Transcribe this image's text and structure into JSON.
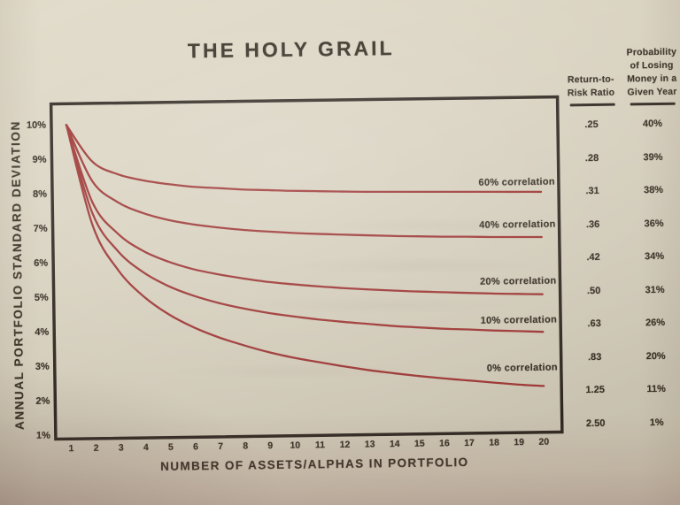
{
  "chart_data": {
    "type": "line",
    "title": "THE HOLY GRAIL",
    "xlabel": "NUMBER OF ASSETS/ALPHAS IN PORTFOLIO",
    "ylabel": "ANNUAL PORTFOLIO STANDARD DEVIATION",
    "x": [
      1,
      2,
      3,
      4,
      5,
      6,
      7,
      8,
      9,
      10,
      11,
      12,
      13,
      14,
      15,
      16,
      17,
      18,
      19,
      20
    ],
    "x_tick_labels": [
      "1",
      "2",
      "3",
      "4",
      "5",
      "6",
      "7",
      "8",
      "9",
      "10",
      "11",
      "12",
      "13",
      "14",
      "15",
      "16",
      "17",
      "18",
      "19",
      "20"
    ],
    "y_tick_labels": [
      "10%",
      "9%",
      "8%",
      "7%",
      "6%",
      "5%",
      "4%",
      "3%",
      "2%",
      "1%"
    ],
    "ylim": [
      1,
      10
    ],
    "y_unit": "percent",
    "grid": false,
    "legend_position": "labels-inline-right",
    "line_color": "#9c3533",
    "frame_color": "#2e2720",
    "series": [
      {
        "name": "60% correlation",
        "correlation_pct": 60,
        "values": [
          10.0,
          8.94,
          8.56,
          8.37,
          8.25,
          8.16,
          8.11,
          8.06,
          8.03,
          8.0,
          7.98,
          7.96,
          7.94,
          7.93,
          7.92,
          7.91,
          7.9,
          7.89,
          7.88,
          7.87
        ]
      },
      {
        "name": "40% correlation",
        "correlation_pct": 40,
        "values": [
          10.0,
          8.37,
          7.75,
          7.42,
          7.21,
          7.07,
          6.97,
          6.89,
          6.83,
          6.78,
          6.74,
          6.71,
          6.68,
          6.65,
          6.63,
          6.61,
          6.6,
          6.58,
          6.57,
          6.56
        ]
      },
      {
        "name": "20% correlation",
        "correlation_pct": 20,
        "values": [
          10.0,
          7.75,
          6.83,
          6.32,
          6.0,
          5.77,
          5.61,
          5.48,
          5.37,
          5.29,
          5.22,
          5.16,
          5.11,
          5.07,
          5.03,
          5.0,
          4.97,
          4.94,
          4.92,
          4.9
        ]
      },
      {
        "name": "10% correlation",
        "correlation_pct": 10,
        "values": [
          10.0,
          7.42,
          6.32,
          5.7,
          5.29,
          5.0,
          4.78,
          4.61,
          4.47,
          4.36,
          4.26,
          4.18,
          4.11,
          4.04,
          3.99,
          3.94,
          3.91,
          3.87,
          3.84,
          3.81
        ]
      },
      {
        "name": "0% correlation",
        "correlation_pct": 0,
        "values": [
          10.0,
          7.07,
          5.77,
          5.0,
          4.47,
          4.08,
          3.78,
          3.54,
          3.33,
          3.16,
          3.02,
          2.89,
          2.77,
          2.67,
          2.58,
          2.5,
          2.43,
          2.36,
          2.29,
          2.24
        ]
      }
    ]
  },
  "risk_table": {
    "ratio_header": "Return-to-\nRisk Ratio",
    "prob_header": "Probability\nof Losing\nMoney in a\nGiven Year",
    "rows": [
      {
        "ratio": ".25",
        "prob": "40%"
      },
      {
        "ratio": ".28",
        "prob": "39%"
      },
      {
        "ratio": ".31",
        "prob": "38%"
      },
      {
        "ratio": ".36",
        "prob": "36%"
      },
      {
        "ratio": ".42",
        "prob": "34%"
      },
      {
        "ratio": ".50",
        "prob": "31%"
      },
      {
        "ratio": ".63",
        "prob": "26%"
      },
      {
        "ratio": ".83",
        "prob": "20%"
      },
      {
        "ratio": "1.25",
        "prob": "11%"
      },
      {
        "ratio": "2.50",
        "prob": "1%"
      }
    ]
  }
}
